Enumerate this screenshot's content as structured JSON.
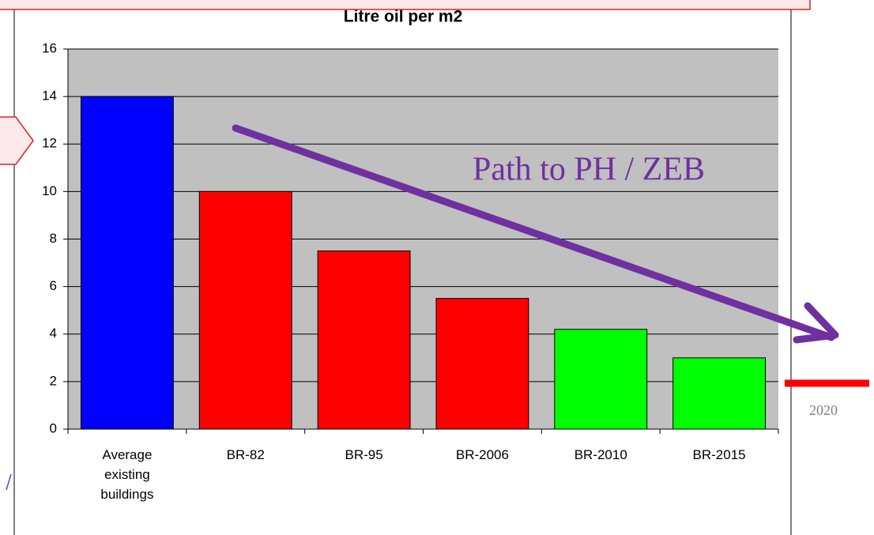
{
  "chart_data": {
    "type": "bar",
    "title": "Litre oil per m2",
    "categories": [
      "Average existing buildings",
      "BR-82",
      "BR-95",
      "BR-2006",
      "BR-2010",
      "BR-2015"
    ],
    "values": [
      14,
      10,
      7.5,
      5.5,
      4.2,
      3
    ],
    "colors": [
      "#0000ff",
      "#ff0000",
      "#ff0000",
      "#ff0000",
      "#00ff00",
      "#00ff00"
    ],
    "ylim": [
      0,
      16
    ],
    "yticks": [
      0,
      2,
      4,
      6,
      8,
      10,
      12,
      14,
      16
    ],
    "grid": true,
    "annotations": [
      "Path to PH / ZEB",
      "2020"
    ]
  }
}
